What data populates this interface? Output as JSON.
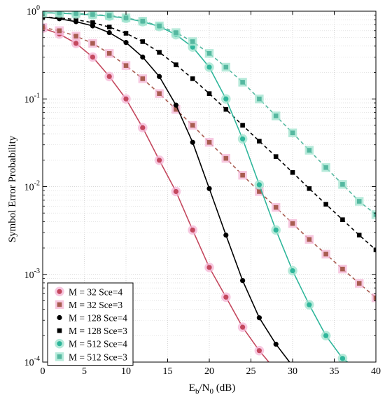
{
  "chart_data": {
    "type": "line",
    "title": "",
    "xlabel": {
      "base": "E",
      "sub1": "b",
      "mid": "/N",
      "sub2": "0",
      "tail": " (dB)"
    },
    "ylabel": "Symbol Error Probability",
    "x_scale": "linear",
    "y_scale": "log",
    "xlim": [
      0,
      40
    ],
    "ylim": [
      0.0001,
      1
    ],
    "x_ticks": [
      0,
      5,
      10,
      15,
      20,
      25,
      30,
      35,
      40
    ],
    "y_ticks": [
      {
        "value": 1,
        "base": "10",
        "exp": "0"
      },
      {
        "value": 0.1,
        "base": "10",
        "exp": "-1"
      },
      {
        "value": 0.01,
        "base": "10",
        "exp": "-2"
      },
      {
        "value": 0.001,
        "base": "10",
        "exp": "-3"
      },
      {
        "value": 0.0001,
        "base": "10",
        "exp": "-4"
      }
    ],
    "grid": true,
    "legend_position": "bottom-left",
    "series": [
      {
        "name": "M = 32 Sce=4",
        "color": "#c4485e",
        "halo": "#f4b6d6",
        "marker": "circle",
        "line_style": "solid",
        "x": [
          0,
          2,
          4,
          6,
          8,
          10,
          12,
          14,
          16,
          18,
          20,
          22,
          24,
          26,
          28
        ],
        "values": [
          0.64,
          0.55,
          0.43,
          0.3,
          0.18,
          0.1,
          0.047,
          0.02,
          0.0088,
          0.0032,
          0.0012,
          0.00055,
          0.00025,
          0.000135,
          8e-05
        ]
      },
      {
        "name": "M = 32 Sce=3",
        "color": "#a85c50",
        "halo": "#f4b6d6",
        "marker": "square",
        "line_style": "dashed",
        "x": [
          0,
          2,
          4,
          6,
          8,
          10,
          12,
          14,
          16,
          18,
          20,
          22,
          24,
          26,
          28,
          30,
          32,
          34,
          36,
          38,
          40
        ],
        "values": [
          0.65,
          0.6,
          0.52,
          0.43,
          0.33,
          0.24,
          0.17,
          0.115,
          0.076,
          0.05,
          0.032,
          0.021,
          0.0135,
          0.0088,
          0.0058,
          0.0038,
          0.0025,
          0.0017,
          0.00115,
          0.00079,
          0.00054
        ]
      },
      {
        "name": "M = 128 Sce=4",
        "color": "#000000",
        "halo": "none",
        "marker": "circle",
        "line_style": "solid",
        "x": [
          0,
          2,
          4,
          6,
          8,
          10,
          12,
          14,
          16,
          18,
          20,
          22,
          24,
          26,
          28,
          30,
          32
        ],
        "values": [
          0.86,
          0.82,
          0.76,
          0.68,
          0.57,
          0.44,
          0.3,
          0.18,
          0.085,
          0.032,
          0.0095,
          0.0028,
          0.00085,
          0.00032,
          0.00016,
          9e-05,
          6e-05
        ]
      },
      {
        "name": "M = 128 Sce=3",
        "color": "#000000",
        "halo": "none",
        "marker": "square",
        "line_style": "dashed",
        "x": [
          0,
          2,
          4,
          6,
          8,
          10,
          12,
          14,
          16,
          18,
          20,
          22,
          24,
          26,
          28,
          30,
          32,
          34,
          36,
          38,
          40
        ],
        "values": [
          0.86,
          0.84,
          0.8,
          0.74,
          0.66,
          0.56,
          0.45,
          0.34,
          0.245,
          0.17,
          0.115,
          0.076,
          0.05,
          0.033,
          0.022,
          0.0145,
          0.0095,
          0.0063,
          0.0042,
          0.0028,
          0.0019
        ]
      },
      {
        "name": "M = 512 Sce=4",
        "color": "#2fb69b",
        "halo": "#9fe3cd",
        "marker": "circle",
        "line_style": "solid",
        "x": [
          0,
          2,
          4,
          6,
          8,
          10,
          12,
          14,
          16,
          18,
          20,
          22,
          24,
          26,
          28,
          30,
          32,
          34,
          36,
          38
        ],
        "values": [
          0.96,
          0.95,
          0.93,
          0.91,
          0.88,
          0.83,
          0.76,
          0.67,
          0.54,
          0.39,
          0.23,
          0.1,
          0.035,
          0.0105,
          0.0032,
          0.0011,
          0.00045,
          0.0002,
          0.00011,
          8e-05
        ]
      },
      {
        "name": "M = 512 Sce=3",
        "color": "#55b8a0",
        "halo": "#9fe3cd",
        "marker": "square",
        "line_style": "dashed",
        "x": [
          0,
          2,
          4,
          6,
          8,
          10,
          12,
          14,
          16,
          18,
          20,
          22,
          24,
          26,
          28,
          30,
          32,
          34,
          36,
          38,
          40
        ],
        "values": [
          0.96,
          0.96,
          0.94,
          0.92,
          0.89,
          0.84,
          0.77,
          0.68,
          0.57,
          0.45,
          0.33,
          0.23,
          0.155,
          0.1,
          0.064,
          0.041,
          0.026,
          0.0165,
          0.0106,
          0.0068,
          0.0048
        ]
      }
    ]
  }
}
